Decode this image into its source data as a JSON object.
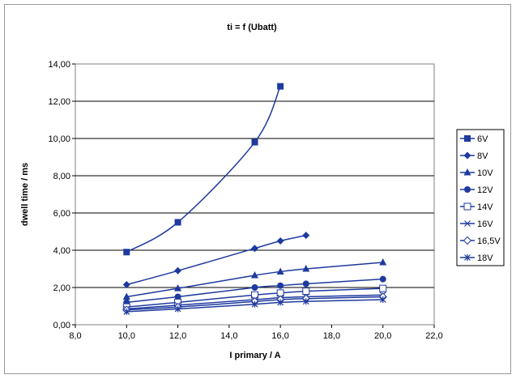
{
  "chart_data": {
    "type": "line",
    "title": "ti = f (Ubatt)",
    "xlabel": "I primary / A",
    "ylabel": "dwell time / ms",
    "xlim": [
      8,
      22
    ],
    "ylim": [
      0,
      14
    ],
    "xticks": [
      "8,0",
      "10,0",
      "12,0",
      "14,0",
      "16,0",
      "18,0",
      "20,0",
      "22,0"
    ],
    "yticks": [
      "0,00",
      "2,00",
      "4,00",
      "6,00",
      "8,00",
      "10,00",
      "12,00",
      "14,00"
    ],
    "grid": "horizontal",
    "legend_position": "right",
    "line_color": "#1f3a9e",
    "series": [
      {
        "name": "6V",
        "marker": "square-filled",
        "x": [
          10,
          12,
          15,
          16
        ],
        "y": [
          3.9,
          5.5,
          9.8,
          12.8
        ]
      },
      {
        "name": "8V",
        "marker": "diamond-filled",
        "x": [
          10,
          12,
          15,
          16,
          17
        ],
        "y": [
          2.15,
          2.9,
          4.1,
          4.5,
          4.8
        ]
      },
      {
        "name": "10V",
        "marker": "triangle-filled",
        "x": [
          10,
          12,
          15,
          16,
          17,
          20
        ],
        "y": [
          1.5,
          1.95,
          2.65,
          2.85,
          3.0,
          3.35
        ]
      },
      {
        "name": "12V",
        "marker": "circle-filled",
        "x": [
          10,
          12,
          15,
          16,
          17,
          20
        ],
        "y": [
          1.2,
          1.5,
          2.0,
          2.1,
          2.2,
          2.45
        ]
      },
      {
        "name": "14V",
        "marker": "square-open",
        "x": [
          10,
          12,
          15,
          16,
          17,
          20
        ],
        "y": [
          0.95,
          1.2,
          1.6,
          1.7,
          1.8,
          1.95
        ]
      },
      {
        "name": "16V",
        "marker": "x",
        "x": [
          10,
          12,
          15,
          16,
          17,
          20
        ],
        "y": [
          0.85,
          1.05,
          1.35,
          1.45,
          1.5,
          1.6
        ]
      },
      {
        "name": "16,5V",
        "marker": "diamond-open",
        "x": [
          10,
          12,
          15,
          16,
          17,
          20
        ],
        "y": [
          0.8,
          0.95,
          1.25,
          1.35,
          1.4,
          1.5
        ]
      },
      {
        "name": "18V",
        "marker": "asterisk",
        "x": [
          10,
          12,
          15,
          16,
          17,
          20
        ],
        "y": [
          0.7,
          0.85,
          1.1,
          1.2,
          1.25,
          1.35
        ]
      }
    ]
  }
}
